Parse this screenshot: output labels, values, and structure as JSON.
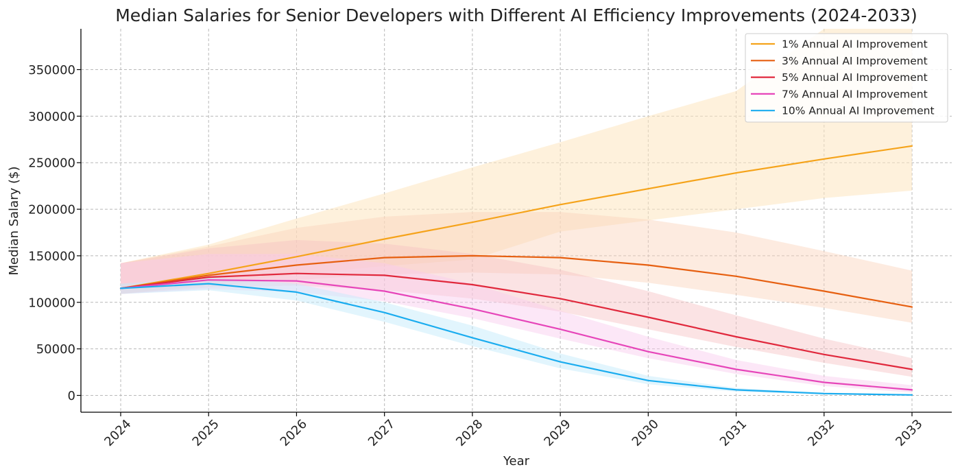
{
  "chart_data": {
    "type": "line",
    "title": "Median Salaries for Senior Developers with Different AI Efficiency Improvements (2024-2033)",
    "xlabel": "Year",
    "ylabel": "Median Salary ($)",
    "x": [
      2024,
      2025,
      2026,
      2027,
      2028,
      2029,
      2030,
      2031,
      2032,
      2033
    ],
    "xticks": [
      "2024",
      "2025",
      "2026",
      "2027",
      "2028",
      "2029",
      "2030",
      "2031",
      "2032",
      "2033"
    ],
    "ylim": [
      -18000,
      395000
    ],
    "yticks": [
      0,
      50000,
      100000,
      150000,
      200000,
      250000,
      300000,
      350000
    ],
    "grid": true,
    "legend_position": "top-right",
    "series": [
      {
        "name": "1% Annual AI Improvement",
        "color": "#f5a31a",
        "band_color": "#fde6bf",
        "band_opacity": 0.55,
        "values": [
          115000,
          131000,
          149000,
          168000,
          186000,
          205000,
          222000,
          239000,
          254000,
          268000
        ],
        "upper": [
          142000,
          162000,
          190000,
          217000,
          245000,
          272000,
          300000,
          327000,
          null,
          null
        ],
        "lower": [
          109000,
          120000,
          130000,
          139000,
          146000,
          176000,
          188000,
          200000,
          212000,
          220000
        ]
      },
      {
        "name": "3% Annual AI Improvement",
        "color": "#e65f10",
        "band_color": "#fad2bb",
        "band_opacity": 0.45,
        "values": [
          115000,
          129000,
          140000,
          148000,
          150000,
          148000,
          140000,
          128000,
          112000,
          95000
        ],
        "upper": [
          142000,
          160000,
          180000,
          192000,
          197000,
          197000,
          189000,
          175000,
          155000,
          134000
        ],
        "lower": [
          109000,
          118000,
          124000,
          130000,
          132000,
          130000,
          121000,
          108000,
          94000,
          78000
        ]
      },
      {
        "name": "5% Annual AI Improvement",
        "color": "#e0283c",
        "band_color": "#f7c2c3",
        "band_opacity": 0.45,
        "values": [
          115000,
          127000,
          131000,
          129000,
          119000,
          104000,
          84000,
          63000,
          44000,
          28000
        ],
        "upper": [
          142000,
          158000,
          167000,
          163000,
          152000,
          135000,
          112000,
          86000,
          61000,
          40000
        ],
        "lower": [
          109000,
          116000,
          118000,
          113000,
          104000,
          90000,
          71000,
          52000,
          35000,
          20000
        ]
      },
      {
        "name": "7% Annual AI Improvement",
        "color": "#e645b9",
        "band_color": "#f9c9ee",
        "band_opacity": 0.45,
        "values": [
          115000,
          124000,
          123000,
          112000,
          93000,
          71000,
          47000,
          28000,
          14000,
          6000
        ],
        "upper": [
          142000,
          152000,
          152000,
          142000,
          120000,
          91000,
          63000,
          38000,
          21000,
          11000
        ],
        "lower": [
          109000,
          114000,
          111000,
          101000,
          83000,
          61000,
          40000,
          23000,
          10000,
          3000
        ]
      },
      {
        "name": "10% Annual AI Improvement",
        "color": "#1aacef",
        "band_color": "#c6ebfb",
        "band_opacity": 0.5,
        "values": [
          115000,
          120000,
          111000,
          89000,
          62000,
          36000,
          16000,
          6000,
          2000,
          500
        ],
        "upper": [
          120000,
          127000,
          120000,
          100000,
          75000,
          45000,
          21000,
          8000,
          3000,
          1000
        ],
        "lower": [
          109000,
          113000,
          102000,
          79000,
          53000,
          29000,
          12000,
          4000,
          1000,
          0
        ]
      }
    ]
  }
}
